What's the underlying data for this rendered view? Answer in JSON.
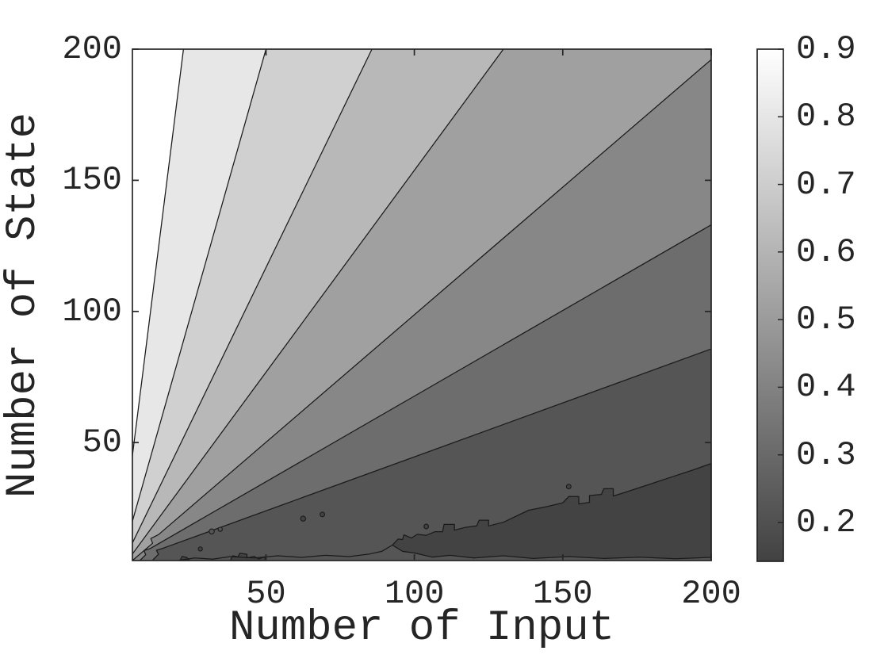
{
  "chart_data": {
    "type": "contour",
    "xlabel": "Number of Input",
    "ylabel": "Number of State",
    "xlim": [
      5,
      200
    ],
    "ylim": [
      5,
      200
    ],
    "xticks": [
      {
        "label": "50",
        "value": 50
      },
      {
        "label": "100",
        "value": 100
      },
      {
        "label": "150",
        "value": 150
      },
      {
        "label": "200",
        "value": 200
      }
    ],
    "yticks": [
      {
        "label": "50",
        "value": 50
      },
      {
        "label": "100",
        "value": 100
      },
      {
        "label": "150",
        "value": 150
      },
      {
        "label": "200",
        "value": 200
      }
    ],
    "grid": false,
    "levels": [
      0.2,
      0.3,
      0.4,
      0.5,
      0.6,
      0.7,
      0.8,
      0.9
    ],
    "line_color": "#1a1a1a",
    "axis_color": "#252525",
    "colorbar": {
      "position": "right",
      "value_top": 0.9,
      "value_bottom": 0.1425,
      "gradient_top": "#ffffff",
      "gradient_bottom": "#424242",
      "ticks": [
        {
          "label": "0.9",
          "value": 0.9
        },
        {
          "label": "0.8",
          "value": 0.8
        },
        {
          "label": "0.7",
          "value": 0.7
        },
        {
          "label": "0.6",
          "value": 0.6
        },
        {
          "label": "0.5",
          "value": 0.5
        },
        {
          "label": "0.4",
          "value": 0.4
        },
        {
          "label": "0.3",
          "value": 0.3
        },
        {
          "label": "0.2",
          "value": 0.2
        }
      ]
    },
    "bands": [
      {
        "range": [
          0.9,
          1.0
        ],
        "color": "#ffffff",
        "points": [
          [
            5,
            45
          ],
          [
            5,
            200
          ],
          [
            22.2,
            200
          ]
        ]
      },
      {
        "range": [
          0.8,
          0.9
        ],
        "color": "#e7e7e7",
        "points": [
          [
            5,
            20
          ],
          [
            5,
            45
          ],
          [
            22.2,
            200
          ],
          [
            50,
            200
          ]
        ]
      },
      {
        "range": [
          0.7,
          0.8
        ],
        "color": "#d0d0d0",
        "points": [
          [
            5,
            11.7
          ],
          [
            5,
            20
          ],
          [
            50,
            200
          ],
          [
            85.7,
            200
          ]
        ]
      },
      {
        "range": [
          0.6,
          0.7
        ],
        "color": "#b8b8b8",
        "points": [
          [
            5,
            7.5
          ],
          [
            5,
            11.7
          ],
          [
            85.7,
            200
          ],
          [
            130,
            200
          ]
        ]
      },
      {
        "range": [
          0.5,
          0.6
        ],
        "color": "#a0a0a0",
        "points": [
          [
            5,
            5
          ],
          [
            5,
            7.5
          ],
          [
            130,
            200
          ],
          [
            200,
            200
          ],
          [
            200,
            196
          ],
          [
            13.8,
            14.9
          ],
          [
            11.2,
            13.4
          ],
          [
            11.8,
            11.6
          ]
        ]
      },
      {
        "range": [
          0.4,
          0.5
        ],
        "color": "#878787",
        "points": [
          [
            5,
            5
          ],
          [
            11.8,
            11.6
          ],
          [
            11.2,
            13.4
          ],
          [
            13.8,
            14.9
          ],
          [
            200,
            196
          ],
          [
            200,
            133
          ],
          [
            11,
            9.6
          ],
          [
            8.9,
            8.8
          ],
          [
            9.5,
            7.2
          ],
          [
            7.5,
            5
          ]
        ]
      },
      {
        "range": [
          0.3,
          0.4
        ],
        "color": "#6d6d6d",
        "points": [
          [
            7.5,
            5
          ],
          [
            9.5,
            7.2
          ],
          [
            8.9,
            8.8
          ],
          [
            11,
            9.6
          ],
          [
            200,
            133
          ],
          [
            200,
            85.7
          ],
          [
            15.6,
            9.8
          ],
          [
            13.1,
            8.9
          ],
          [
            13.8,
            7.4
          ],
          [
            11.7,
            5
          ]
        ]
      },
      {
        "range": [
          0.2,
          0.3
        ],
        "color": "#555555",
        "points": [
          [
            11.7,
            5
          ],
          [
            13.8,
            7.4
          ],
          [
            13.1,
            8.9
          ],
          [
            15.6,
            9.8
          ],
          [
            200,
            85.7
          ],
          [
            200,
            5
          ]
        ]
      }
    ],
    "contour_lines": [
      {
        "level": 0.9,
        "points": [
          [
            5,
            45
          ],
          [
            22.2,
            200
          ]
        ]
      },
      {
        "level": 0.8,
        "points": [
          [
            5,
            20
          ],
          [
            50,
            200
          ]
        ]
      },
      {
        "level": 0.7,
        "points": [
          [
            5,
            11.7
          ],
          [
            85.7,
            200
          ]
        ]
      },
      {
        "level": 0.6,
        "points": [
          [
            5,
            7.5
          ],
          [
            130,
            200
          ]
        ]
      },
      {
        "level": 0.5,
        "points": [
          [
            5,
            5
          ],
          [
            11.8,
            11.6
          ],
          [
            11.2,
            13.4
          ],
          [
            13.8,
            14.9
          ],
          [
            200,
            196
          ]
        ]
      },
      {
        "level": 0.4,
        "points": [
          [
            7.5,
            5
          ],
          [
            9.5,
            7.2
          ],
          [
            8.9,
            8.8
          ],
          [
            11,
            9.6
          ],
          [
            200,
            133
          ]
        ]
      },
      {
        "level": 0.3,
        "points": [
          [
            11.7,
            5
          ],
          [
            13.8,
            7.4
          ],
          [
            13.1,
            8.9
          ],
          [
            15.6,
            9.8
          ],
          [
            200,
            85.7
          ]
        ]
      },
      {
        "level": 0.2,
        "points": [
          [
            20,
            5
          ],
          [
            26,
            6
          ],
          [
            32,
            5.5
          ],
          [
            38,
            6.5
          ],
          [
            46,
            6
          ],
          [
            54,
            6.8
          ],
          [
            62,
            6.2
          ],
          [
            70,
            7
          ],
          [
            78,
            6.5
          ],
          [
            85,
            7.5
          ],
          [
            89,
            8.5
          ],
          [
            92.6,
            10.9
          ]
        ]
      }
    ],
    "low_regions": [
      {
        "name": "main-dark-blob",
        "color": "#434343",
        "closed": true,
        "points": [
          [
            92.6,
            10.9
          ],
          [
            94.5,
            13.2
          ],
          [
            96,
            13
          ],
          [
            96.5,
            14.8
          ],
          [
            99,
            13.6
          ],
          [
            101,
            15
          ],
          [
            104,
            14.6
          ],
          [
            107,
            16
          ],
          [
            109.5,
            16
          ],
          [
            110,
            18.8
          ],
          [
            113.5,
            18.8
          ],
          [
            113.5,
            16.6
          ],
          [
            117,
            17.6
          ],
          [
            121,
            18.2
          ],
          [
            121.8,
            20.4
          ],
          [
            125,
            20.4
          ],
          [
            125,
            18.2
          ],
          [
            130,
            19.6
          ],
          [
            138.5,
            24.2
          ],
          [
            144,
            25.4
          ],
          [
            150,
            27
          ],
          [
            152,
            29.4
          ],
          [
            155.4,
            29.4
          ],
          [
            155.4,
            26.6
          ],
          [
            159,
            27.2
          ],
          [
            159,
            29.8
          ],
          [
            163,
            30.2
          ],
          [
            163.8,
            32.4
          ],
          [
            167,
            32.4
          ],
          [
            167,
            29.6
          ],
          [
            171,
            31
          ],
          [
            179,
            34
          ],
          [
            187,
            37
          ],
          [
            194,
            39.6
          ],
          [
            200,
            42
          ],
          [
            200,
            6.2
          ],
          [
            188,
            5.7
          ],
          [
            176,
            6.3
          ],
          [
            164,
            5.8
          ],
          [
            152,
            6.5
          ],
          [
            140,
            5.8
          ],
          [
            130,
            6.8
          ],
          [
            120,
            6
          ],
          [
            112,
            7
          ],
          [
            106,
            6.3
          ],
          [
            100,
            7.9
          ],
          [
            96,
            8.5
          ]
        ]
      },
      {
        "name": "small-blob-1",
        "color": "#434343",
        "closed": true,
        "points": [
          [
            38,
            5
          ],
          [
            38.8,
            6.8
          ],
          [
            40.6,
            6.4
          ],
          [
            41.2,
            7.8
          ],
          [
            43.6,
            7.4
          ],
          [
            43.6,
            6
          ],
          [
            46,
            6.6
          ],
          [
            47.5,
            5.6
          ],
          [
            49.5,
            6.4
          ],
          [
            50,
            5
          ]
        ]
      },
      {
        "name": "small-blob-2",
        "color": "#434343",
        "closed": true,
        "points": [
          [
            21,
            5
          ],
          [
            21.8,
            6.6
          ],
          [
            23.4,
            6.1
          ],
          [
            24.2,
            5
          ]
        ]
      }
    ],
    "specks": [
      {
        "x": 31.7,
        "y": 16.1,
        "r": 1.0,
        "color": "#555555"
      },
      {
        "x": 34.6,
        "y": 16.9,
        "r": 0.8,
        "color": "#555555"
      },
      {
        "x": 62.5,
        "y": 21.0,
        "r": 1.0,
        "color": "#434343"
      },
      {
        "x": 69.0,
        "y": 22.6,
        "r": 0.9,
        "color": "#434343"
      },
      {
        "x": 104.0,
        "y": 18.0,
        "r": 0.9,
        "color": "#434343"
      },
      {
        "x": 152.0,
        "y": 33.2,
        "r": 0.9,
        "color": "#434343"
      },
      {
        "x": 27.9,
        "y": 9.4,
        "r": 0.8,
        "color": "#434343"
      }
    ]
  },
  "labels": {
    "xlabel": "Number of Input",
    "ylabel": "Number of State"
  }
}
